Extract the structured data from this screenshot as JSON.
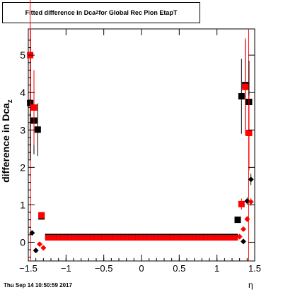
{
  "chart_data": {
    "type": "scatter",
    "title_main": "Fitted difference in Dca",
    "title_sub": "Z",
    "title_rest": " for Global Rec Pion EtapT",
    "xlabel": "η",
    "ylabel_main": "difference in Dca",
    "ylabel_sub": "z",
    "xlim": [
      -1.5,
      1.5
    ],
    "ylim": [
      -0.5,
      5.7
    ],
    "xticks": [
      -1.5,
      -1,
      -0.5,
      0,
      0.5,
      1,
      1.5
    ],
    "xtick_labels": [
      "−1.5",
      "−1",
      "−0.5",
      "0",
      "0.5",
      "1",
      "1.5"
    ],
    "yticks": [
      0,
      1,
      2,
      3,
      4,
      5
    ],
    "ytick_labels": [
      "0",
      "1",
      "2",
      "3",
      "4",
      "5"
    ],
    "grid": false,
    "timestamp": "Thu Sep 14 10:50:59 2017",
    "colors": {
      "black": "#000000",
      "red": "#ff0000",
      "axis": "#000000"
    },
    "series": [
      {
        "color": "#000000",
        "marker": "square",
        "points": [
          {
            "x": -1.475,
            "y": 3.72,
            "err": 1.5
          },
          {
            "x": -1.425,
            "y": 3.25,
            "err": 0.9
          },
          {
            "x": -1.375,
            "y": 3.01,
            "err": 0.7
          },
          {
            "x": -1.325,
            "y": 0.69,
            "err": 0.05
          },
          {
            "x": 1.275,
            "y": 0.6,
            "err": 0.08
          },
          {
            "x": 1.325,
            "y": 3.9,
            "err": 1.0
          },
          {
            "x": 1.375,
            "y": 4.2,
            "err": 1.2
          },
          {
            "x": 1.425,
            "y": 3.75,
            "err": 1.1
          }
        ]
      },
      {
        "color": "#ff0000",
        "marker": "square",
        "points": [
          {
            "x": -1.475,
            "y": 5.0,
            "err": 1.5
          },
          {
            "x": -1.425,
            "y": 3.6,
            "err": 1.0
          },
          {
            "x": -1.325,
            "y": 0.72,
            "err": 0.05
          },
          {
            "x": 1.325,
            "y": 1.02,
            "err": 0.15
          },
          {
            "x": 1.375,
            "y": 4.15,
            "err": 1.3
          },
          {
            "x": 1.425,
            "y": 2.92,
            "err": 1.0
          }
        ]
      },
      {
        "color": "#000000",
        "marker": "diamond",
        "points": [
          {
            "x": -1.45,
            "y": 0.25,
            "err": 0.04
          },
          {
            "x": -1.4,
            "y": -0.22,
            "err": 0.04
          },
          {
            "x": 1.35,
            "y": 0.02,
            "err": 0.04
          },
          {
            "x": 1.4,
            "y": 1.1,
            "err": 0.1
          },
          {
            "x": 1.45,
            "y": 1.68,
            "err": 0.15
          }
        ]
      },
      {
        "color": "#ff0000",
        "marker": "diamond",
        "points": [
          {
            "x": -1.35,
            "y": -0.05,
            "err": 0.04
          },
          {
            "x": -1.3,
            "y": -0.15,
            "err": 0.04
          },
          {
            "x": 1.3,
            "y": 0.15,
            "err": 0.04
          },
          {
            "x": 1.35,
            "y": 0.35,
            "err": 0.05
          },
          {
            "x": 1.4,
            "y": 0.62,
            "err": 0.08
          },
          {
            "x": 1.45,
            "y": 1.08,
            "err": 0.1
          }
        ]
      }
    ],
    "band": {
      "x_start": -1.25,
      "x_end": 1.25,
      "step": 0.05,
      "y_black": 0.15,
      "y_red": 0.12
    },
    "vlines": [
      -1.47,
      1.42
    ]
  }
}
